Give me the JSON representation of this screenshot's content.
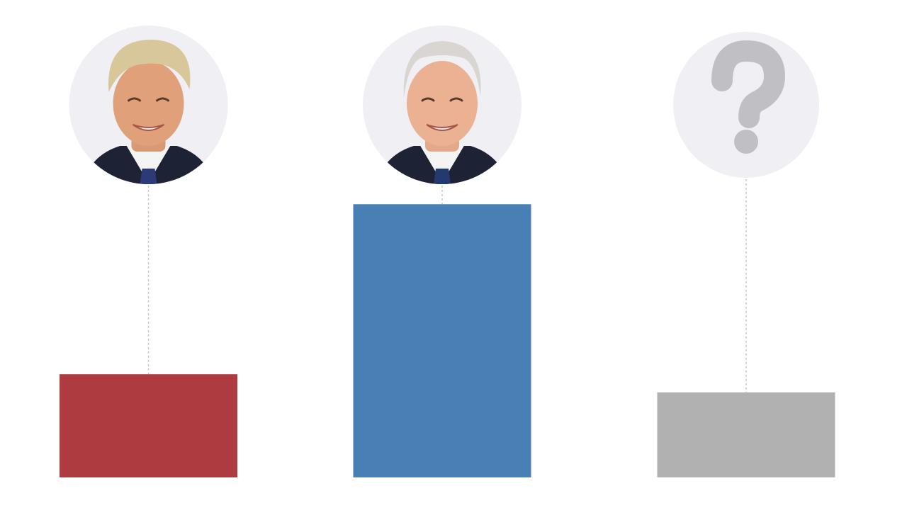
{
  "chart_data": {
    "type": "bar",
    "categories": [
      "",
      "",
      ""
    ],
    "values": [
      22.6,
      59.8,
      18.6
    ],
    "colors": [
      "#ad3b40",
      "#4880b6",
      "#b2b1b2"
    ],
    "avatars": [
      "portrait-photo-icon",
      "portrait-photo-icon",
      "question-mark-icon"
    ],
    "title": "",
    "xlabel": "",
    "ylabel": "",
    "ylim": [
      0,
      100
    ],
    "grid": false,
    "legend": "none"
  },
  "palette": {
    "avatar_bg": "#efeff4",
    "question_mark": "#c0c0c4",
    "leader_line": "#c8c8c8"
  }
}
